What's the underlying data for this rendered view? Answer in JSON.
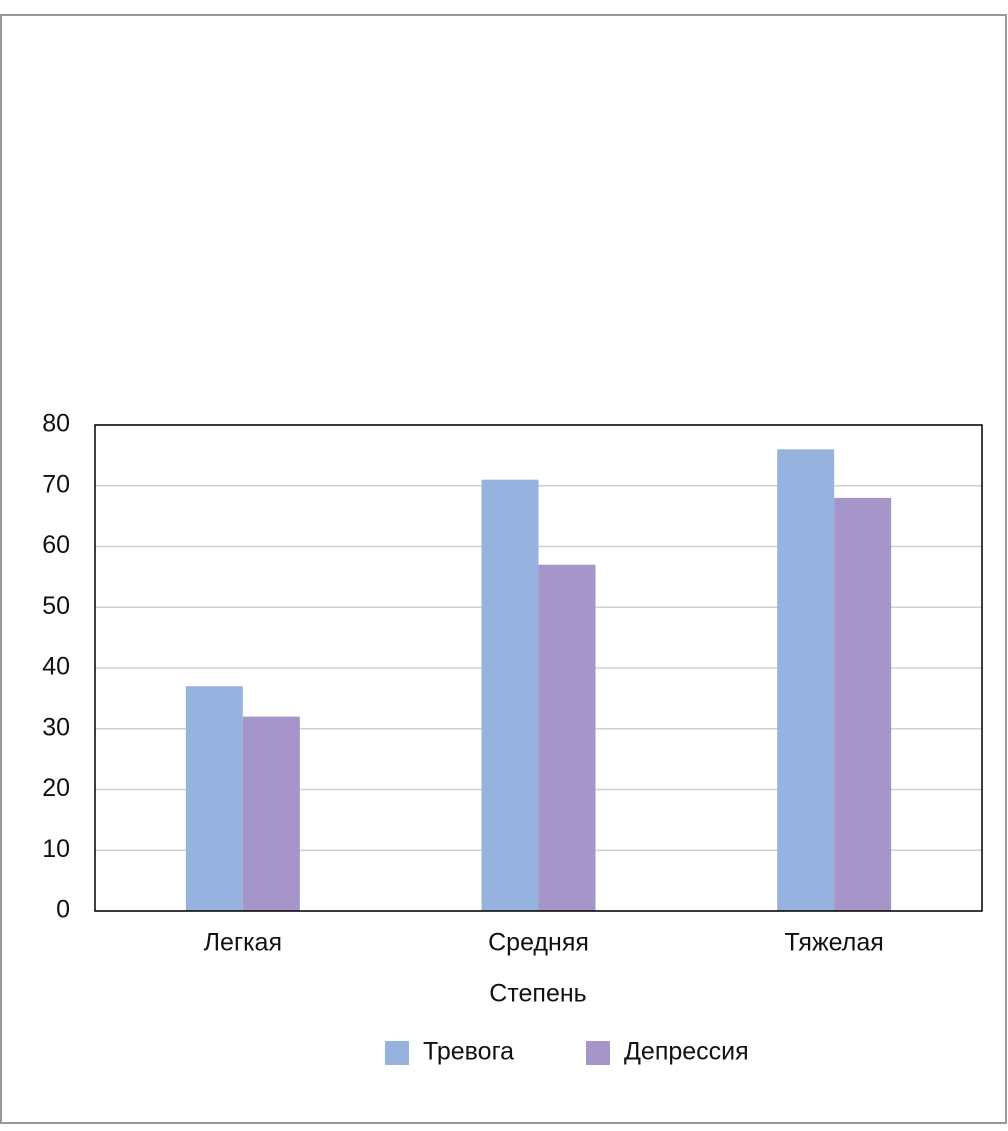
{
  "chart_data": {
    "type": "bar",
    "x_label": "Степень",
    "categories": [
      "Легкая",
      "Средняя",
      "Тяжелая"
    ],
    "series": [
      {
        "name": "Тревога",
        "color": "#95b3de",
        "values": [
          37,
          71,
          76
        ]
      },
      {
        "name": "Депрессия",
        "color": "#a595c9",
        "values": [
          32,
          57,
          68
        ]
      }
    ],
    "ylim": [
      0,
      80
    ],
    "yticks": [
      0,
      10,
      20,
      30,
      40,
      50,
      60,
      70,
      80
    ],
    "grid": true,
    "legend": "bottom"
  }
}
